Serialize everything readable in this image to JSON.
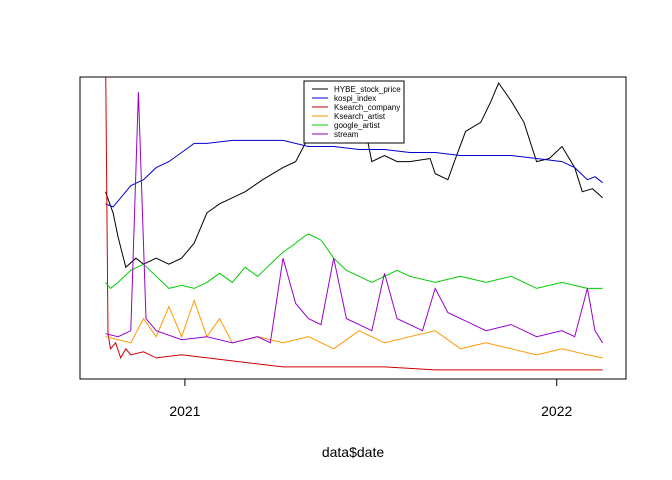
{
  "chart_data": {
    "type": "line",
    "xlabel": "data$date",
    "ylabel": "",
    "x_start": "2020-10-15",
    "x_end": "2022-02-15",
    "xlim": [
      "2020-09-20",
      "2022-03-10"
    ],
    "ylim": [
      0,
      100
    ],
    "x_ticks": [
      {
        "date": "2021-01-01",
        "label": "2021"
      },
      {
        "date": "2022-01-01",
        "label": "2022"
      }
    ],
    "grid": false,
    "legend_position": "top-center",
    "series": [
      {
        "name": "HYBE_stock_price",
        "color": "#000000",
        "values": [
          [
            0,
            62
          ],
          [
            0.03,
            55
          ],
          [
            0.05,
            47
          ],
          [
            0.08,
            37
          ],
          [
            0.12,
            40
          ],
          [
            0.15,
            38
          ],
          [
            0.2,
            40
          ],
          [
            0.25,
            38
          ],
          [
            0.3,
            40
          ],
          [
            0.35,
            45
          ],
          [
            0.4,
            55
          ],
          [
            0.45,
            58
          ],
          [
            0.5,
            60
          ],
          [
            0.55,
            62
          ],
          [
            0.62,
            66
          ],
          [
            0.7,
            70
          ],
          [
            0.75,
            72
          ],
          [
            0.8,
            80
          ],
          [
            0.85,
            80
          ],
          [
            0.9,
            84
          ],
          [
            0.95,
            90
          ],
          [
            1.0,
            93
          ],
          [
            1.05,
            72
          ],
          [
            1.1,
            74
          ],
          [
            1.15,
            72
          ],
          [
            1.2,
            72
          ],
          [
            1.28,
            73
          ],
          [
            1.3,
            68
          ],
          [
            1.35,
            66
          ],
          [
            1.38,
            73
          ],
          [
            1.42,
            82
          ],
          [
            1.48,
            85
          ],
          [
            1.52,
            92
          ],
          [
            1.55,
            98
          ],
          [
            1.6,
            92
          ],
          [
            1.65,
            85
          ],
          [
            1.7,
            72
          ],
          [
            1.75,
            73
          ],
          [
            1.8,
            77
          ],
          [
            1.85,
            70
          ],
          [
            1.88,
            62
          ],
          [
            1.92,
            63
          ],
          [
            1.96,
            60
          ]
        ]
      },
      {
        "name": "kospi_index",
        "color": "#0000cc",
        "values": [
          [
            0,
            58
          ],
          [
            0.03,
            57
          ],
          [
            0.06,
            60
          ],
          [
            0.1,
            64
          ],
          [
            0.15,
            66
          ],
          [
            0.2,
            70
          ],
          [
            0.25,
            72
          ],
          [
            0.3,
            75
          ],
          [
            0.35,
            78
          ],
          [
            0.4,
            78
          ],
          [
            0.5,
            79
          ],
          [
            0.6,
            79
          ],
          [
            0.7,
            79
          ],
          [
            0.8,
            77
          ],
          [
            0.9,
            77
          ],
          [
            1.0,
            76
          ],
          [
            1.1,
            76
          ],
          [
            1.2,
            75
          ],
          [
            1.3,
            75
          ],
          [
            1.4,
            74
          ],
          [
            1.5,
            74
          ],
          [
            1.6,
            74
          ],
          [
            1.7,
            73
          ],
          [
            1.8,
            72
          ],
          [
            1.85,
            70
          ],
          [
            1.9,
            66
          ],
          [
            1.93,
            67
          ],
          [
            1.96,
            65
          ]
        ]
      },
      {
        "name": "Ksearch_company",
        "color": "#cc0000",
        "values": [
          [
            0,
            110
          ],
          [
            0.01,
            15
          ],
          [
            0.02,
            10
          ],
          [
            0.04,
            12
          ],
          [
            0.06,
            7
          ],
          [
            0.08,
            10
          ],
          [
            0.1,
            8
          ],
          [
            0.15,
            9
          ],
          [
            0.2,
            7
          ],
          [
            0.3,
            8
          ],
          [
            0.5,
            6
          ],
          [
            0.7,
            4
          ],
          [
            0.9,
            4
          ],
          [
            1.1,
            4
          ],
          [
            1.3,
            3
          ],
          [
            1.5,
            3
          ],
          [
            1.7,
            3
          ],
          [
            1.96,
            3
          ]
        ]
      },
      {
        "name": "Ksearch_artist",
        "color": "#ff9900",
        "values": [
          [
            0,
            14
          ],
          [
            0.1,
            12
          ],
          [
            0.15,
            20
          ],
          [
            0.2,
            14
          ],
          [
            0.25,
            24
          ],
          [
            0.3,
            14
          ],
          [
            0.35,
            26
          ],
          [
            0.4,
            14
          ],
          [
            0.45,
            20
          ],
          [
            0.5,
            12
          ],
          [
            0.6,
            14
          ],
          [
            0.7,
            12
          ],
          [
            0.8,
            14
          ],
          [
            0.9,
            10
          ],
          [
            1.0,
            16
          ],
          [
            1.1,
            12
          ],
          [
            1.2,
            14
          ],
          [
            1.3,
            16
          ],
          [
            1.4,
            10
          ],
          [
            1.5,
            12
          ],
          [
            1.6,
            10
          ],
          [
            1.7,
            8
          ],
          [
            1.8,
            10
          ],
          [
            1.9,
            8
          ],
          [
            1.96,
            7
          ]
        ]
      },
      {
        "name": "google_artist",
        "color": "#00cc00",
        "values": [
          [
            0,
            32
          ],
          [
            0.02,
            30
          ],
          [
            0.05,
            32
          ],
          [
            0.1,
            36
          ],
          [
            0.15,
            38
          ],
          [
            0.2,
            34
          ],
          [
            0.25,
            30
          ],
          [
            0.3,
            31
          ],
          [
            0.35,
            30
          ],
          [
            0.4,
            32
          ],
          [
            0.45,
            35
          ],
          [
            0.5,
            32
          ],
          [
            0.55,
            37
          ],
          [
            0.6,
            34
          ],
          [
            0.65,
            38
          ],
          [
            0.7,
            42
          ],
          [
            0.75,
            45
          ],
          [
            0.78,
            47
          ],
          [
            0.8,
            48
          ],
          [
            0.85,
            46
          ],
          [
            0.9,
            40
          ],
          [
            0.95,
            36
          ],
          [
            1.0,
            34
          ],
          [
            1.05,
            32
          ],
          [
            1.1,
            34
          ],
          [
            1.15,
            36
          ],
          [
            1.2,
            34
          ],
          [
            1.3,
            32
          ],
          [
            1.4,
            34
          ],
          [
            1.5,
            32
          ],
          [
            1.6,
            34
          ],
          [
            1.7,
            30
          ],
          [
            1.8,
            32
          ],
          [
            1.9,
            30
          ],
          [
            1.96,
            30
          ]
        ]
      },
      {
        "name": "stream",
        "color": "#9900cc",
        "values": [
          [
            0,
            15
          ],
          [
            0.05,
            14
          ],
          [
            0.1,
            16
          ],
          [
            0.13,
            95
          ],
          [
            0.16,
            20
          ],
          [
            0.2,
            16
          ],
          [
            0.3,
            13
          ],
          [
            0.4,
            14
          ],
          [
            0.5,
            12
          ],
          [
            0.55,
            13
          ],
          [
            0.6,
            14
          ],
          [
            0.65,
            12
          ],
          [
            0.7,
            40
          ],
          [
            0.75,
            25
          ],
          [
            0.8,
            20
          ],
          [
            0.85,
            18
          ],
          [
            0.9,
            40
          ],
          [
            0.95,
            20
          ],
          [
            1.0,
            18
          ],
          [
            1.05,
            16
          ],
          [
            1.1,
            35
          ],
          [
            1.15,
            20
          ],
          [
            1.2,
            18
          ],
          [
            1.25,
            16
          ],
          [
            1.3,
            30
          ],
          [
            1.35,
            22
          ],
          [
            1.4,
            20
          ],
          [
            1.45,
            18
          ],
          [
            1.5,
            16
          ],
          [
            1.6,
            18
          ],
          [
            1.7,
            14
          ],
          [
            1.8,
            16
          ],
          [
            1.85,
            14
          ],
          [
            1.9,
            30
          ],
          [
            1.93,
            16
          ],
          [
            1.96,
            12
          ]
        ]
      }
    ]
  }
}
